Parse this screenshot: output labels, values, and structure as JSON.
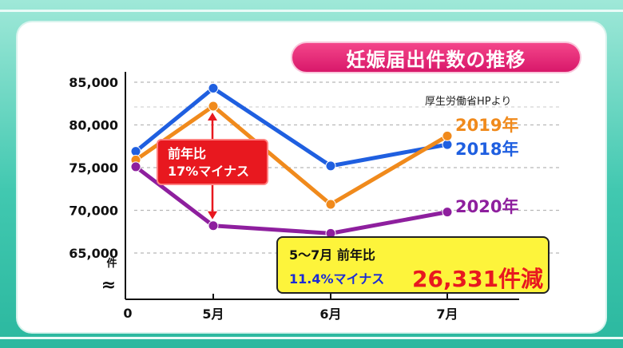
{
  "chart_data": {
    "type": "line",
    "title": "妊娠届出件数の推移",
    "source": "厚生労働省HPより",
    "categories": [
      "",
      "5月",
      "6月",
      "7月"
    ],
    "origin_label": "0",
    "break_symbol": "≈",
    "y_unit": "件",
    "y_ticks": [
      "85,000",
      "80,000",
      "75,000",
      "70,000",
      "65,000"
    ],
    "y_tick_values": [
      85000,
      80000,
      75000,
      70000,
      65000
    ],
    "ylim": [
      65000,
      85000
    ],
    "grid": true,
    "series": [
      {
        "name": "2018年",
        "color": "#1f5fe0",
        "values": [
          76900,
          84300,
          75200,
          77700
        ]
      },
      {
        "name": "2019年",
        "color": "#f08a1c",
        "values": [
          75900,
          82200,
          70700,
          78700
        ]
      },
      {
        "name": "2020年",
        "color": "#8e1f9e",
        "values": [
          75100,
          68200,
          67300,
          69800
        ]
      }
    ],
    "annotations": {
      "callout_line1": "前年比",
      "callout_line2": "17%マイナス",
      "summary_line1": "5〜7月 前年比",
      "summary_line2": "11.4%マイナス",
      "summary_big": "26,331件減"
    }
  }
}
